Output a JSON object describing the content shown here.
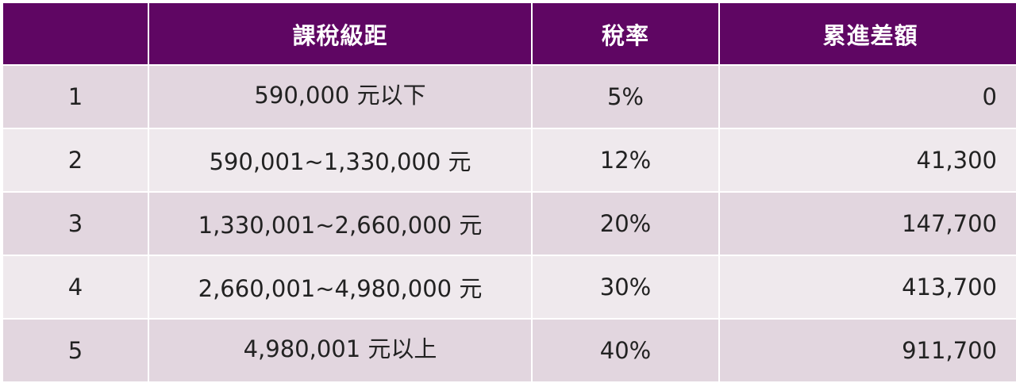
{
  "table": {
    "headers": {
      "index": "",
      "bracket": "課稅級距",
      "rate": "稅率",
      "progressive_difference": "累進差額"
    },
    "rows": [
      {
        "index": "1",
        "bracket": "590,000 元以下",
        "rate": "5%",
        "progressive_difference": "0"
      },
      {
        "index": "2",
        "bracket": "590,001~1,330,000 元",
        "rate": "12%",
        "progressive_difference": "41,300"
      },
      {
        "index": "3",
        "bracket": "1,330,001~2,660,000 元",
        "rate": "20%",
        "progressive_difference": "147,700"
      },
      {
        "index": "4",
        "bracket": "2,660,001~4,980,000 元",
        "rate": "30%",
        "progressive_difference": "413,700"
      },
      {
        "index": "5",
        "bracket": "4,980,001 元以上",
        "rate": "40%",
        "progressive_difference": "911,700"
      }
    ]
  },
  "colors": {
    "header_background": "#5f0663",
    "header_text": "#ffffff",
    "row_odd_background": "#e2d6df",
    "row_even_background": "#efe9ed"
  }
}
